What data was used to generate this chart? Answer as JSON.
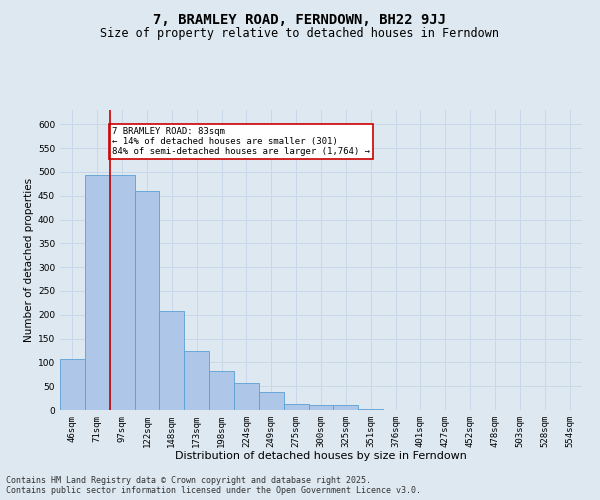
{
  "title": "7, BRAMLEY ROAD, FERNDOWN, BH22 9JJ",
  "subtitle": "Size of property relative to detached houses in Ferndown",
  "xlabel": "Distribution of detached houses by size in Ferndown",
  "ylabel": "Number of detached properties",
  "categories": [
    "46sqm",
    "71sqm",
    "97sqm",
    "122sqm",
    "148sqm",
    "173sqm",
    "198sqm",
    "224sqm",
    "249sqm",
    "275sqm",
    "300sqm",
    "325sqm",
    "351sqm",
    "376sqm",
    "401sqm",
    "427sqm",
    "452sqm",
    "478sqm",
    "503sqm",
    "528sqm",
    "554sqm"
  ],
  "values": [
    107,
    493,
    493,
    460,
    207,
    124,
    82,
    57,
    38,
    13,
    10,
    10,
    3,
    0,
    0,
    0,
    0,
    0,
    0,
    0,
    0
  ],
  "bar_color": "#aec6e8",
  "bar_edge_color": "#5a9fd4",
  "grid_color": "#c8d8e8",
  "background_color": "#dde8f0",
  "vline_x_index": 1,
  "vline_color": "#cc0000",
  "annotation_text": "7 BRAMLEY ROAD: 83sqm\n← 14% of detached houses are smaller (301)\n84% of semi-detached houses are larger (1,764) →",
  "annotation_box_color": "#ffffff",
  "annotation_box_edge": "#cc0000",
  "footer_text": "Contains HM Land Registry data © Crown copyright and database right 2025.\nContains public sector information licensed under the Open Government Licence v3.0.",
  "ylim": [
    0,
    630
  ],
  "yticks": [
    0,
    50,
    100,
    150,
    200,
    250,
    300,
    350,
    400,
    450,
    500,
    550,
    600
  ],
  "title_fontsize": 10,
  "subtitle_fontsize": 8.5,
  "xlabel_fontsize": 8,
  "ylabel_fontsize": 7.5,
  "tick_fontsize": 6.5,
  "footer_fontsize": 6,
  "annot_fontsize": 6.5
}
